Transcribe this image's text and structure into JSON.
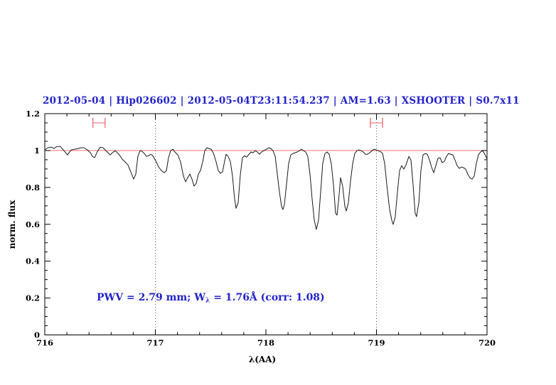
{
  "figure": {
    "title": "2012-05-04 | Hip026602 | 2012-05-04T23:11:54.237 | AM=1.63 | XSHOOTER | S0.7x11",
    "title_color": "#2222cc",
    "annotation": {
      "pre": "PWV = 2.79 mm; W",
      "sub": "λ",
      "post": " = 1.76Å (corr: 1.08)",
      "color": "#2222cc"
    }
  },
  "chart_data": {
    "type": "line",
    "title": "2012-05-04 | Hip026602 | 2012-05-04T23:11:54.237 | AM=1.63 | XSHOOTER | S0.7x11",
    "xlabel": "λ(AA)",
    "ylabel": "norm. flux",
    "xlim": [
      716,
      720
    ],
    "ylim": [
      0,
      1.2
    ],
    "grid": "off",
    "legend": "none",
    "x_ticks": {
      "major": [
        716,
        717,
        718,
        719,
        720
      ],
      "labels": [
        "716",
        "717",
        "718",
        "719",
        "720"
      ],
      "minor_step": 0.2
    },
    "y_ticks": {
      "major": [
        0,
        0.2,
        0.4,
        0.6,
        0.8,
        1.0,
        1.2
      ],
      "labels": [
        "0",
        "0.2",
        "0.4",
        "0.6",
        "0.8",
        "1",
        "1.2"
      ],
      "minor_step": 0.05
    },
    "frame_color": "#000000",
    "continuum_line": {
      "flux": 1.0,
      "color": "#f07070"
    },
    "dotted_guides_x": [
      717,
      719
    ],
    "guide_color": "#555555",
    "range_markers": [
      {
        "x": 716.49,
        "width": 0.11,
        "flux": 1.15,
        "color": "#f08080"
      },
      {
        "x": 719.0,
        "width": 0.11,
        "flux": 1.15,
        "color": "#f08080"
      }
    ],
    "series": [
      {
        "name": "normalized telluric spectrum",
        "color": "#1a1a1a",
        "x": [
          716.0,
          716.026,
          716.058,
          716.084,
          716.109,
          716.141,
          716.174,
          716.206,
          716.238,
          716.27,
          716.302,
          716.328,
          716.354,
          716.386,
          716.412,
          716.431,
          716.45,
          716.476,
          716.502,
          716.527,
          716.547,
          716.572,
          716.592,
          716.611,
          716.637,
          716.656,
          716.675,
          716.701,
          716.727,
          716.752,
          716.778,
          716.804,
          716.823,
          716.842,
          716.862,
          716.881,
          716.9,
          716.92,
          716.939,
          716.958,
          716.977,
          717.003,
          717.029,
          717.055,
          717.08,
          717.1,
          717.119,
          717.138,
          717.158,
          717.177,
          717.203,
          717.228,
          717.254,
          717.273,
          717.293,
          717.312,
          717.331,
          717.35,
          717.37,
          717.389,
          717.408,
          717.428,
          717.447,
          717.466,
          717.486,
          717.505,
          717.524,
          717.55,
          717.569,
          717.588,
          717.608,
          717.627,
          717.64,
          717.659,
          717.679,
          717.698,
          717.717,
          717.73,
          717.749,
          717.769,
          717.788,
          717.807,
          717.826,
          717.846,
          717.865,
          717.884,
          717.903,
          717.923,
          717.942,
          717.961,
          717.981,
          718.006,
          718.026,
          718.045,
          718.064,
          718.084,
          718.103,
          718.122,
          718.141,
          718.154,
          718.167,
          718.186,
          718.206,
          718.225,
          718.244,
          718.264,
          718.283,
          718.302,
          718.321,
          718.341,
          718.36,
          718.379,
          718.399,
          718.418,
          718.437,
          718.456,
          718.476,
          718.495,
          718.514,
          718.534,
          718.553,
          718.572,
          718.591,
          718.611,
          718.63,
          718.643,
          718.662,
          718.675,
          718.694,
          718.714,
          718.727,
          718.746,
          718.765,
          718.785,
          718.804,
          718.823,
          718.842,
          718.862,
          718.881,
          718.9,
          718.919,
          718.939,
          718.958,
          718.977,
          718.997,
          719.016,
          719.035,
          719.055,
          719.074,
          719.093,
          719.119,
          719.138,
          719.151,
          719.17,
          719.19,
          719.209,
          719.228,
          719.247,
          719.267,
          719.293,
          719.312,
          719.331,
          719.35,
          719.363,
          719.383,
          719.402,
          719.421,
          719.441,
          719.46,
          719.479,
          719.498,
          719.518,
          719.537,
          719.556,
          719.575,
          719.595,
          719.614,
          719.633,
          719.652,
          719.672,
          719.691,
          719.71,
          719.73,
          719.749,
          719.768,
          719.787,
          719.807,
          719.826,
          719.845,
          719.864,
          719.884,
          719.903,
          719.922,
          719.941,
          719.961,
          719.98,
          720.0
        ],
        "y": [
          1.003,
          1.015,
          1.018,
          1.011,
          1.022,
          1.022,
          0.999,
          0.976,
          1.003,
          1.007,
          1.011,
          1.015,
          1.015,
          1.003,
          0.988,
          0.968,
          0.961,
          0.995,
          1.018,
          1.015,
          1.003,
          0.988,
          0.976,
          0.988,
          0.999,
          0.988,
          0.976,
          0.953,
          0.938,
          0.922,
          0.884,
          0.845,
          0.872,
          0.968,
          0.999,
          0.995,
          0.984,
          0.968,
          0.972,
          0.98,
          0.972,
          0.945,
          0.911,
          0.891,
          0.88,
          0.891,
          0.961,
          0.999,
          1.007,
          0.992,
          0.976,
          0.938,
          0.861,
          0.83,
          0.853,
          0.872,
          0.845,
          0.807,
          0.822,
          0.872,
          0.891,
          0.938,
          0.999,
          1.015,
          1.011,
          1.007,
          0.988,
          0.938,
          0.891,
          0.876,
          0.884,
          0.945,
          0.98,
          0.968,
          0.938,
          0.861,
          0.737,
          0.687,
          0.718,
          0.872,
          0.961,
          0.972,
          0.964,
          0.98,
          0.992,
          0.988,
          0.999,
          0.992,
          0.98,
          0.992,
          0.999,
          1.007,
          1.015,
          1.011,
          0.999,
          0.968,
          0.872,
          0.776,
          0.699,
          0.68,
          0.707,
          0.814,
          0.93,
          0.976,
          0.984,
          0.988,
          0.992,
          0.999,
          1.007,
          0.999,
          0.992,
          0.968,
          0.872,
          0.737,
          0.622,
          0.572,
          0.622,
          0.776,
          0.93,
          0.984,
          0.992,
          0.98,
          0.93,
          0.814,
          0.66,
          0.649,
          0.757,
          0.853,
          0.807,
          0.699,
          0.672,
          0.718,
          0.834,
          0.93,
          0.984,
          0.999,
          1.003,
          0.999,
          0.992,
          0.98,
          0.98,
          0.988,
          0.999,
          1.007,
          1.003,
          0.999,
          0.995,
          0.984,
          0.93,
          0.814,
          0.68,
          0.622,
          0.599,
          0.641,
          0.776,
          0.891,
          0.918,
          0.899,
          0.922,
          0.968,
          0.949,
          0.814,
          0.66,
          0.641,
          0.718,
          0.891,
          0.976,
          0.984,
          0.98,
          0.949,
          0.911,
          0.88,
          0.918,
          0.957,
          0.961,
          0.934,
          0.941,
          0.968,
          0.984,
          0.98,
          0.976,
          0.949,
          0.918,
          0.903,
          0.911,
          0.907,
          0.899,
          0.872,
          0.853,
          0.845,
          0.861,
          0.93,
          0.976,
          0.992,
          0.999,
          0.98,
          0.953
        ]
      }
    ]
  }
}
